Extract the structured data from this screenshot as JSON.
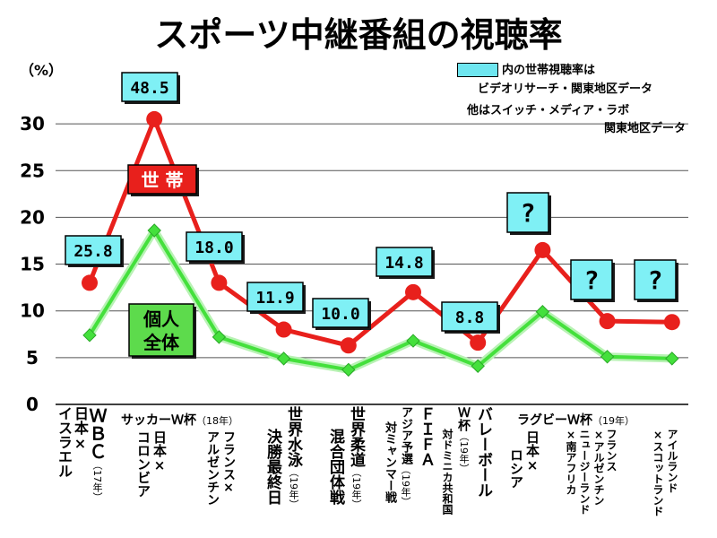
{
  "title": "スポーツ中継番組の視聴率",
  "unit_label": "（%）",
  "legend": {
    "line1": "内の世帯視聴率は",
    "line2": "ビデオリサーチ・関東地区データ",
    "line3": "他はスイッチ・メディア・ラボ",
    "line4": "関東地区データ"
  },
  "series_labels": {
    "household": "世 帯",
    "individual_1": "個人",
    "individual_2": "全体"
  },
  "chart_data": {
    "type": "line",
    "title": "スポーツ中継番組の視聴率",
    "ylabel": "（%）",
    "ylim": [
      0,
      30
    ],
    "yticks": [
      "0",
      "5",
      "10",
      "15",
      "20",
      "25",
      "30"
    ],
    "series": [
      {
        "name": "世帯",
        "color": "#e8201c",
        "values": [
          13.0,
          30.5,
          13.0,
          8.0,
          6.3,
          12.0,
          6.6,
          16.5,
          8.9,
          8.8
        ]
      },
      {
        "name": "個人全体",
        "color": "#44e03c",
        "values": [
          7.4,
          18.6,
          7.2,
          4.9,
          3.7,
          6.8,
          4.1,
          9.9,
          5.1,
          4.9
        ]
      }
    ],
    "callouts": [
      "25.8",
      "48.5",
      "18.0",
      "11.9",
      "10.0",
      "14.8",
      "8.8",
      "?",
      "?",
      "?"
    ]
  },
  "categories": {
    "wbc": {
      "l1": "ＷＢＣ",
      "l2": "（17年）",
      "l3": "日本×",
      "l4": "イスラエル"
    },
    "soccer_header": "サッカーＷ杯",
    "soccer_year": "（18年）",
    "colombia": {
      "l1": "日本×",
      "l2": "コロンビア"
    },
    "france_arg": {
      "l1": "フランス×",
      "l2": "アルゼンチン"
    },
    "swim": {
      "l1": "世界水泳",
      "l2": "（19年）",
      "l3": "決勝最終日"
    },
    "judo": {
      "l1": "世界柔道",
      "l2": "（19年）",
      "l3": "混合団体戦"
    },
    "fifa": {
      "l1": "ＦＩＦＡ",
      "l2": "アジア予選",
      "l3": "（19年）",
      "l4": "対ミャンマー戦"
    },
    "volley": {
      "l1": "バレーボール",
      "l2": "Ｗ杯",
      "l3": "（19年）",
      "l4": "対ドミニカ共和国"
    },
    "rugby_header": "ラグビーＷ杯",
    "rugby_year": "（19年）",
    "russia": {
      "l1": "日本×",
      "l2": "ロシア"
    },
    "nz_sa": {
      "l1": "フランス",
      "l2": "×アルゼンチン",
      "l3": "ニュージーランド",
      "l4": "×南アフリカ"
    },
    "ireland": {
      "l1": "アイルランド",
      "l2": "×スコットランド"
    }
  }
}
